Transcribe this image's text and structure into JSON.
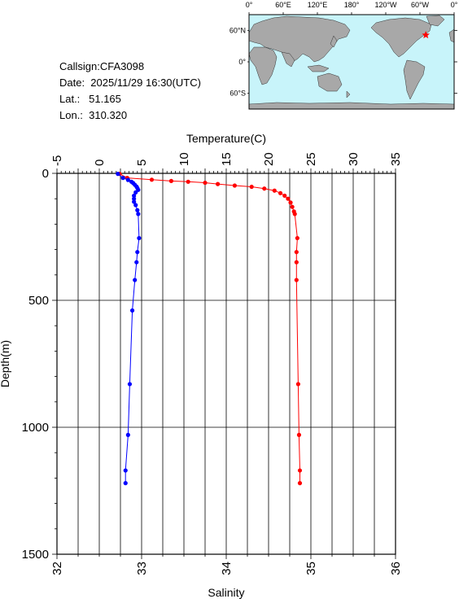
{
  "header": {
    "callsign": "Callsign:CFA3098",
    "date": "Date:  2025/11/29 16:30(UTC)",
    "lat": "Lat.:   51.165",
    "lon": "Lon.:  310.320"
  },
  "map": {
    "lon_labels": [
      "0°",
      "60°E",
      "120°E",
      "180°",
      "120°W",
      "60°W",
      "0°"
    ],
    "lat_labels": [
      "60°N",
      "0°",
      "60°S"
    ],
    "ocean_color": "#c8f4fa",
    "land_color": "#a8a8a8",
    "marker_color": "#ff0000",
    "marker_lat": 51.165,
    "marker_lon": 310.32
  },
  "chart_data": {
    "type": "line",
    "temperature_axis": {
      "label": "Temperature(C)",
      "range": [
        -5,
        35
      ],
      "ticks": [
        "-5",
        "0",
        "5",
        "10",
        "15",
        "20",
        "25",
        "30",
        "35"
      ]
    },
    "salinity_axis": {
      "label": "Salinity",
      "range": [
        32,
        36
      ],
      "ticks": [
        "32",
        "33",
        "34",
        "35",
        "36"
      ]
    },
    "depth_axis": {
      "label": "Depth(m)",
      "range": [
        0,
        1500
      ],
      "ticks": [
        "0",
        "500",
        "1000",
        "1500"
      ]
    },
    "grid": true,
    "series": [
      {
        "quantity": "temperature",
        "color": "#ff0000",
        "points": [
          {
            "depth": 2,
            "value": 2.4
          },
          {
            "depth": 18,
            "value": 3.3
          },
          {
            "depth": 25,
            "value": 6.2
          },
          {
            "depth": 30,
            "value": 8.5
          },
          {
            "depth": 33,
            "value": 10.5
          },
          {
            "depth": 37,
            "value": 12.5
          },
          {
            "depth": 42,
            "value": 14.0
          },
          {
            "depth": 48,
            "value": 16.0
          },
          {
            "depth": 53,
            "value": 18.0
          },
          {
            "depth": 60,
            "value": 19.5
          },
          {
            "depth": 68,
            "value": 20.7
          },
          {
            "depth": 78,
            "value": 21.4
          },
          {
            "depth": 88,
            "value": 21.9
          },
          {
            "depth": 100,
            "value": 22.3
          },
          {
            "depth": 115,
            "value": 22.6
          },
          {
            "depth": 132,
            "value": 22.8
          },
          {
            "depth": 150,
            "value": 23.0
          },
          {
            "depth": 160,
            "value": 23.1
          },
          {
            "depth": 255,
            "value": 23.4
          },
          {
            "depth": 310,
            "value": 23.3
          },
          {
            "depth": 350,
            "value": 23.3
          },
          {
            "depth": 420,
            "value": 23.3
          },
          {
            "depth": 830,
            "value": 23.5
          },
          {
            "depth": 1030,
            "value": 23.6
          },
          {
            "depth": 1170,
            "value": 23.7
          },
          {
            "depth": 1220,
            "value": 23.7
          }
        ]
      },
      {
        "quantity": "salinity",
        "color": "#0000ff",
        "points": [
          {
            "depth": 2,
            "value": 32.72
          },
          {
            "depth": 18,
            "value": 32.78
          },
          {
            "depth": 26,
            "value": 32.84
          },
          {
            "depth": 33,
            "value": 32.88
          },
          {
            "depth": 38,
            "value": 32.9
          },
          {
            "depth": 45,
            "value": 32.92
          },
          {
            "depth": 52,
            "value": 32.94
          },
          {
            "depth": 58,
            "value": 32.95
          },
          {
            "depth": 65,
            "value": 32.96
          },
          {
            "depth": 75,
            "value": 32.93
          },
          {
            "depth": 88,
            "value": 32.91
          },
          {
            "depth": 100,
            "value": 32.91
          },
          {
            "depth": 112,
            "value": 32.91
          },
          {
            "depth": 125,
            "value": 32.93
          },
          {
            "depth": 145,
            "value": 32.95
          },
          {
            "depth": 160,
            "value": 32.96
          },
          {
            "depth": 255,
            "value": 32.97
          },
          {
            "depth": 310,
            "value": 32.95
          },
          {
            "depth": 350,
            "value": 32.94
          },
          {
            "depth": 420,
            "value": 32.92
          },
          {
            "depth": 540,
            "value": 32.89
          },
          {
            "depth": 830,
            "value": 32.86
          },
          {
            "depth": 1030,
            "value": 32.84
          },
          {
            "depth": 1170,
            "value": 32.81
          },
          {
            "depth": 1220,
            "value": 32.81
          }
        ]
      }
    ]
  }
}
